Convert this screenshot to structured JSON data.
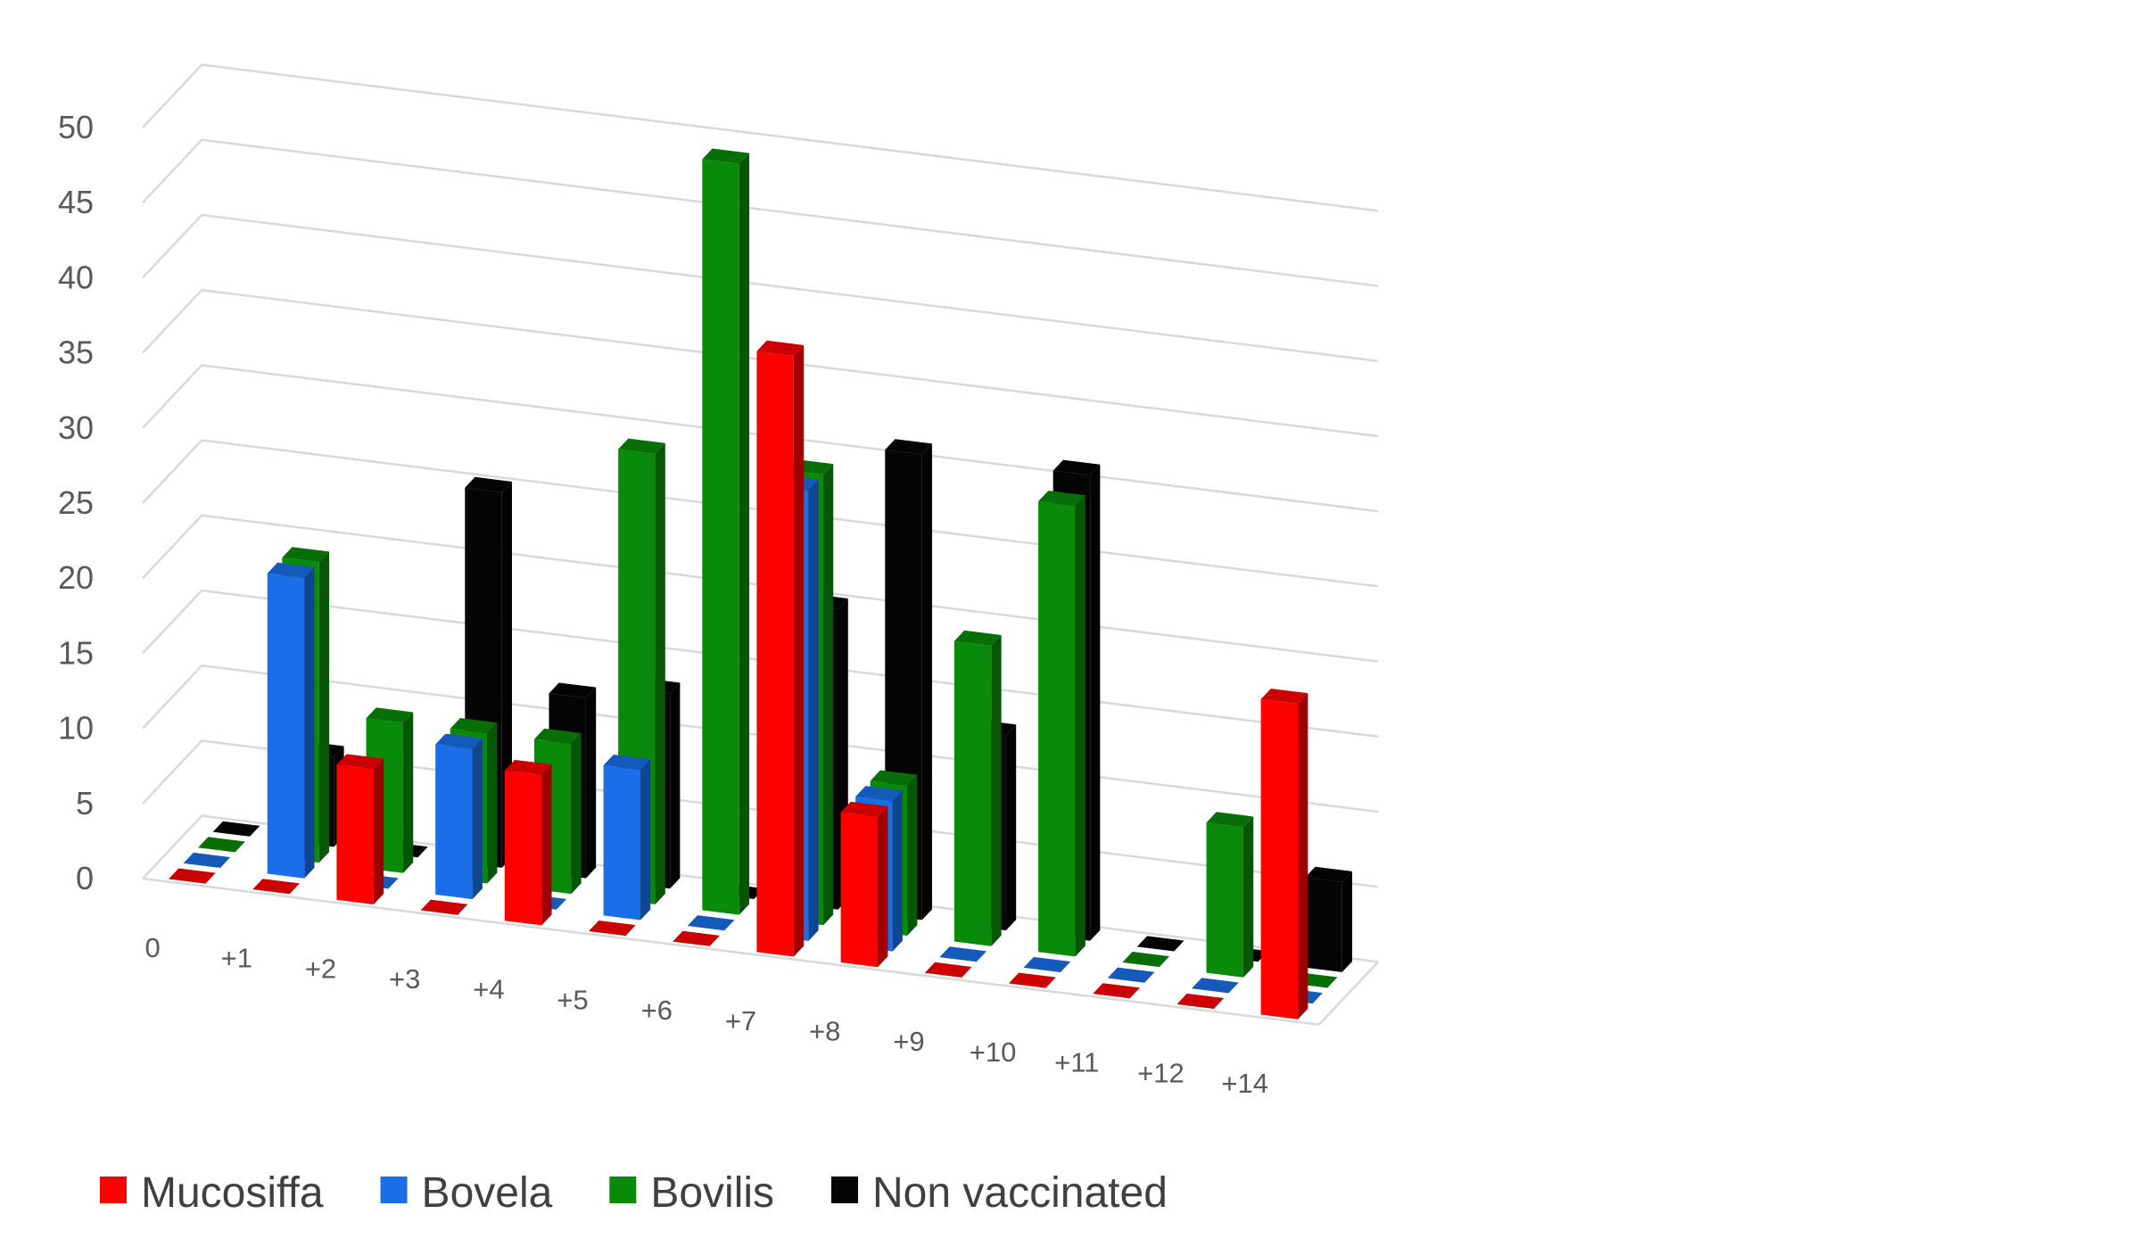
{
  "chart_data": {
    "type": "bar",
    "subtype": "3d-column",
    "title": "",
    "xlabel": "",
    "ylabel": "",
    "ylim": [
      0,
      50
    ],
    "yticks": [
      "0",
      "5",
      "10",
      "15",
      "20",
      "25",
      "30",
      "35",
      "40",
      "45",
      "50"
    ],
    "grid": true,
    "legend_position": "bottom-left",
    "categories": [
      "0",
      "+1",
      "+2",
      "+3",
      "+4",
      "+5",
      "+6",
      "+7",
      "+8",
      "+9",
      "+10",
      "+11",
      "+12",
      "+14"
    ],
    "series": [
      {
        "name": "Mucosiffa",
        "color": "#ff0000",
        "values": [
          0,
          0,
          9,
          0,
          10,
          0,
          0,
          40,
          10,
          0,
          0,
          0,
          0,
          21
        ]
      },
      {
        "name": "Bovela",
        "color": "#1a6fe8",
        "values": [
          0,
          20,
          0,
          10,
          0,
          10,
          0,
          30,
          10,
          0,
          0,
          0,
          0,
          0
        ]
      },
      {
        "name": "Bovilis",
        "color": "#0a8a0a",
        "values": [
          0,
          20,
          10,
          10,
          10,
          30,
          50,
          30,
          10,
          20,
          30,
          0,
          10,
          0
        ]
      },
      {
        "name": "Non vaccinated",
        "color": "#050505",
        "values": [
          0,
          6,
          0,
          25,
          12,
          13,
          0,
          20,
          31,
          13,
          31,
          0,
          0,
          6
        ]
      }
    ]
  }
}
